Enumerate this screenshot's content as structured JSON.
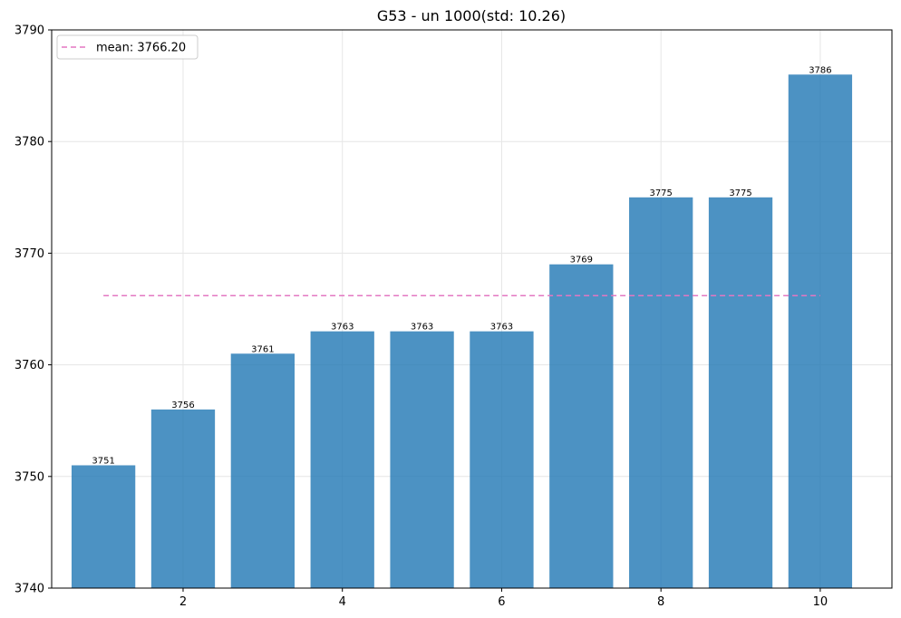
{
  "chart_data": {
    "type": "bar",
    "title": "G53 - un 1000(std: 10.26)",
    "xlabel": "",
    "ylabel": "",
    "x": [
      1,
      2,
      3,
      4,
      5,
      6,
      7,
      8,
      9,
      10
    ],
    "values": [
      3751,
      3756,
      3761,
      3763,
      3763,
      3763,
      3769,
      3775,
      3775,
      3786
    ],
    "value_labels": [
      "3751",
      "3756",
      "3761",
      "3763",
      "3763",
      "3763",
      "3769",
      "3775",
      "3775",
      "3786"
    ],
    "xlim": [
      0.35,
      10.9
    ],
    "ylim": [
      3740,
      3790
    ],
    "xticks": [
      2,
      4,
      6,
      8,
      10
    ],
    "xtick_labels": [
      "2",
      "4",
      "6",
      "8",
      "10"
    ],
    "yticks": [
      3740,
      3750,
      3760,
      3770,
      3780,
      3790
    ],
    "ytick_labels": [
      "3740",
      "3750",
      "3760",
      "3770",
      "3780",
      "3790"
    ],
    "mean": 3766.2,
    "mean_span": [
      1,
      10
    ],
    "legend": {
      "placement": "top-left",
      "entries": [
        {
          "label": "mean: 3766.20",
          "style": "dashed",
          "color": "#e377c2"
        }
      ]
    },
    "grid": true,
    "colors": {
      "bar": "#1f77b4",
      "mean_line": "#e377c2"
    }
  }
}
